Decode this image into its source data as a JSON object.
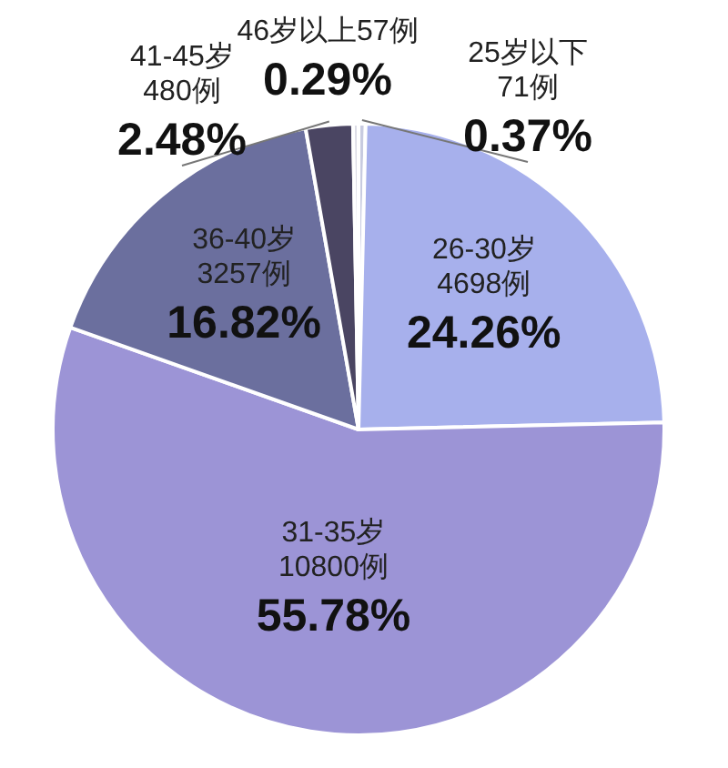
{
  "chart_data": {
    "type": "pie",
    "categories": [
      "25岁以下 71例",
      "26-30岁 4698例",
      "31-35岁 10800例",
      "36-40岁 3257例",
      "41-45岁 480例",
      "46岁以上57例"
    ],
    "values": [
      0.37,
      24.26,
      55.78,
      16.82,
      2.48,
      0.29
    ],
    "value_labels": [
      "0.37%",
      "24.26%",
      "55.78%",
      "16.82%",
      "2.48%",
      "0.29%"
    ],
    "colors": [
      "#c8cbe0",
      "#a7b0ec",
      "#9c94d6",
      "#6b6f9e",
      "#4a4562",
      "#dcdce6"
    ],
    "legend": false
  }
}
